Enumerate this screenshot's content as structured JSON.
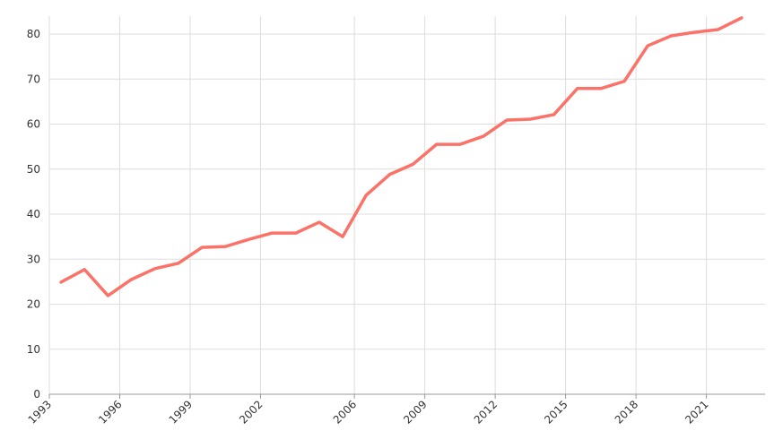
{
  "chart_data": {
    "type": "line",
    "x": [
      1993.5,
      1994.5,
      1995.5,
      1996.5,
      1997.5,
      1998.5,
      1999.5,
      2000.5,
      2001.5,
      2002.5,
      2003.5,
      2004.5,
      2005.5,
      2006.5,
      2007.5,
      2008.5,
      2009.5,
      2010.5,
      2011.5,
      2012.5,
      2013.5,
      2014.5,
      2015.5,
      2016.5,
      2017.5,
      2018.5,
      2019.5,
      2020.5,
      2021.5,
      2022.5
    ],
    "series": [
      {
        "color": "#fa7268",
        "values": [
          24.9,
          27.7,
          21.9,
          25.5,
          27.9,
          29.1,
          32.6,
          32.8,
          34.4,
          35.8,
          35.8,
          38.2,
          35.0,
          44.2,
          48.8,
          51.1,
          55.5,
          55.5,
          57.3,
          60.9,
          61.1,
          62.1,
          67.9,
          67.9,
          69.5,
          77.4,
          79.6,
          80.4,
          81.0,
          83.6
        ]
      }
    ],
    "xlim": [
      1993,
      2023.5
    ],
    "xticks": [
      1993,
      1996,
      1999,
      2002,
      2006,
      2009,
      2012,
      2015,
      2018,
      2021
    ],
    "ylim": [
      0,
      80
    ],
    "yticks": [
      0,
      10,
      20,
      30,
      40,
      50,
      60,
      70,
      80
    ],
    "grid": true
  }
}
